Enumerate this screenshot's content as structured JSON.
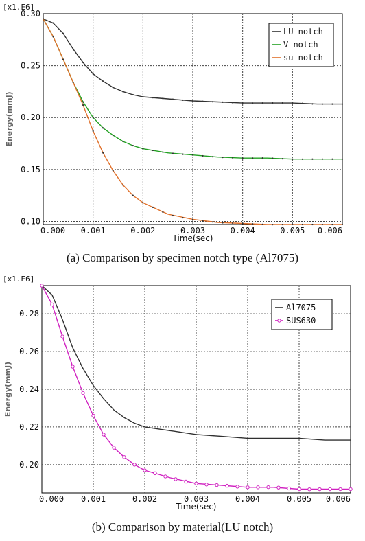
{
  "colors": {
    "lu_notch": "#303030",
    "v_notch": "#22a022",
    "su_notch": "#e0702a",
    "al7075": "#303030",
    "sus630": "#d020c0",
    "grid": "#444444"
  },
  "chart_data": [
    {
      "type": "line",
      "caption": "(a) Comparison by specimen notch type (Al7075)",
      "multiplier_label": "[x1.E6]",
      "xlabel": "Time(sec)",
      "ylabel": "Energy(mmJ)",
      "xlim": [
        0,
        0.006
      ],
      "ylim": [
        0.097,
        0.3
      ],
      "xticks": [
        0,
        0.001,
        0.002,
        0.003,
        0.004,
        0.005,
        0.006
      ],
      "xtick_labels": [
        "0.000",
        "0.001",
        "0.002",
        "0.003",
        "0.004",
        "0.005",
        "0.006"
      ],
      "yticks": [
        0.1,
        0.15,
        0.2,
        0.25,
        0.3
      ],
      "ytick_labels": [
        "0.10",
        "0.15",
        "0.20",
        "0.25",
        "0.30"
      ],
      "grid": true,
      "legend_position": "top-right",
      "series": [
        {
          "name": "LU_notch",
          "color_key": "lu_notch",
          "marker": "dot",
          "x": [
            0,
            0.0002,
            0.0004,
            0.0006,
            0.0008,
            0.001,
            0.0012,
            0.0014,
            0.0016,
            0.0018,
            0.002,
            0.0025,
            0.003,
            0.0035,
            0.004,
            0.0045,
            0.005,
            0.0055,
            0.006
          ],
          "y": [
            0.295,
            0.291,
            0.281,
            0.266,
            0.253,
            0.242,
            0.235,
            0.229,
            0.225,
            0.222,
            0.22,
            0.218,
            0.216,
            0.215,
            0.214,
            0.214,
            0.214,
            0.213,
            0.213
          ]
        },
        {
          "name": "V_notch",
          "color_key": "v_notch",
          "marker": "dot",
          "x": [
            0,
            0.0002,
            0.0004,
            0.0006,
            0.0008,
            0.001,
            0.0012,
            0.0014,
            0.0016,
            0.0018,
            0.002,
            0.0025,
            0.003,
            0.0035,
            0.004,
            0.0045,
            0.005,
            0.0055,
            0.006
          ],
          "y": [
            0.295,
            0.278,
            0.256,
            0.234,
            0.215,
            0.2,
            0.19,
            0.183,
            0.177,
            0.173,
            0.17,
            0.166,
            0.164,
            0.162,
            0.161,
            0.161,
            0.16,
            0.16,
            0.16
          ]
        },
        {
          "name": "su_notch",
          "color_key": "su_notch",
          "marker": "dot",
          "x": [
            0,
            0.0002,
            0.0004,
            0.0006,
            0.0008,
            0.001,
            0.0012,
            0.0014,
            0.0016,
            0.0018,
            0.002,
            0.0025,
            0.003,
            0.0035,
            0.004,
            0.0045,
            0.005,
            0.0055,
            0.006
          ],
          "y": [
            0.295,
            0.278,
            0.256,
            0.234,
            0.212,
            0.187,
            0.166,
            0.149,
            0.135,
            0.125,
            0.118,
            0.107,
            0.102,
            0.099,
            0.098,
            0.097,
            0.097,
            0.097,
            0.097
          ]
        }
      ]
    },
    {
      "type": "line",
      "caption": "(b) Comparison by material(LU notch)",
      "multiplier_label": "[x1.E6]",
      "xlabel": "Time(sec)",
      "ylabel": "Energy(mmJ)",
      "xlim": [
        0,
        0.006
      ],
      "ylim": [
        0.185,
        0.295
      ],
      "xticks": [
        0,
        0.001,
        0.002,
        0.003,
        0.004,
        0.005,
        0.006
      ],
      "xtick_labels": [
        "0.000",
        "0.001",
        "0.002",
        "0.003",
        "0.004",
        "0.005",
        "0.006"
      ],
      "yticks": [
        0.2,
        0.22,
        0.24,
        0.26,
        0.28
      ],
      "ytick_labels": [
        "0.20",
        "0.22",
        "0.24",
        "0.26",
        "0.28"
      ],
      "grid": true,
      "legend_position": "top-right",
      "series": [
        {
          "name": "Al7075",
          "color_key": "al7075",
          "marker": "none",
          "x": [
            0,
            0.0002,
            0.0004,
            0.0006,
            0.0008,
            0.001,
            0.0012,
            0.0014,
            0.0016,
            0.0018,
            0.002,
            0.0025,
            0.003,
            0.0035,
            0.004,
            0.0045,
            0.005,
            0.0055,
            0.006
          ],
          "y": [
            0.295,
            0.29,
            0.277,
            0.262,
            0.251,
            0.242,
            0.235,
            0.229,
            0.225,
            0.222,
            0.22,
            0.218,
            0.216,
            0.215,
            0.214,
            0.214,
            0.214,
            0.213,
            0.213
          ]
        },
        {
          "name": "SUS630",
          "color_key": "sus630",
          "marker": "circle",
          "x": [
            0,
            0.0002,
            0.0004,
            0.0006,
            0.0008,
            0.001,
            0.0012,
            0.0014,
            0.0016,
            0.0018,
            0.002,
            0.0025,
            0.003,
            0.0035,
            0.004,
            0.0045,
            0.005,
            0.0055,
            0.006
          ],
          "y": [
            0.295,
            0.285,
            0.268,
            0.252,
            0.238,
            0.226,
            0.216,
            0.209,
            0.204,
            0.2,
            0.197,
            0.193,
            0.19,
            0.189,
            0.188,
            0.188,
            0.187,
            0.187,
            0.187
          ]
        }
      ]
    }
  ]
}
